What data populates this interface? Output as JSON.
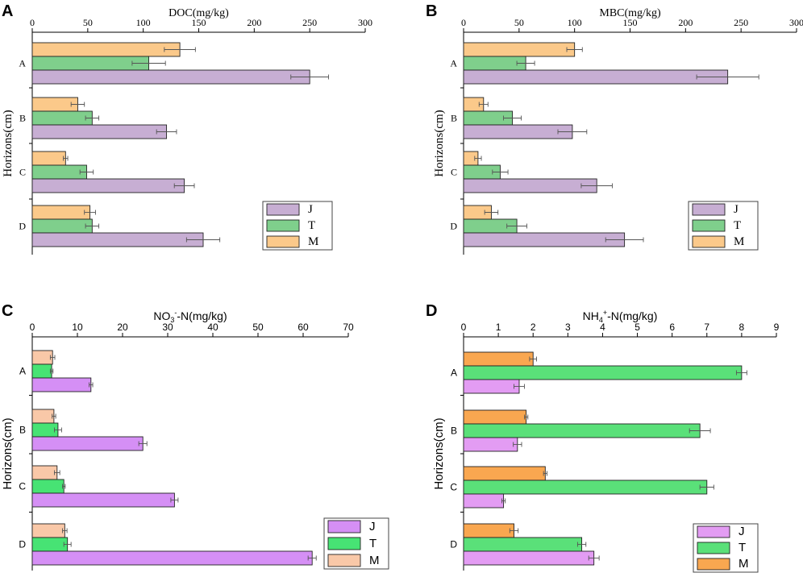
{
  "figure": {
    "panel_labels": [
      "A",
      "B",
      "C",
      "D"
    ]
  },
  "chart_data": [
    {
      "type": "bar",
      "orientation": "horizontal",
      "panel": "A",
      "title": "DOC(mg/kg)",
      "ylabel": "Horizons(cm)",
      "xlabel": "",
      "categories": [
        "A",
        "B",
        "C",
        "D"
      ],
      "xlim": [
        0,
        300
      ],
      "xticks": [
        "0",
        "50",
        "100",
        "150",
        "200",
        "250",
        "300"
      ],
      "legend_position": "bottom-right",
      "legend_order": [
        "J",
        "T",
        "M"
      ],
      "series": [
        {
          "name": "M",
          "color": "#fbc98a",
          "values": [
            133,
            41,
            30,
            52
          ],
          "errors": [
            14,
            6,
            2,
            5
          ]
        },
        {
          "name": "T",
          "color": "#7fcf8c",
          "values": [
            105,
            54,
            49,
            54
          ],
          "errors": [
            15,
            6,
            6,
            6
          ]
        },
        {
          "name": "J",
          "color": "#c7aed3",
          "values": [
            250,
            121,
            137,
            154
          ],
          "errors": [
            17,
            9,
            9,
            15
          ]
        }
      ]
    },
    {
      "type": "bar",
      "orientation": "horizontal",
      "panel": "B",
      "title": "MBC(mg/kg)",
      "ylabel": "Horizons(cm)",
      "xlabel": "",
      "categories": [
        "A",
        "B",
        "C",
        "D"
      ],
      "xlim": [
        0,
        300
      ],
      "xticks": [
        "0",
        "50",
        "100",
        "150",
        "200",
        "250",
        "300"
      ],
      "legend_position": "bottom-right",
      "legend_order": [
        "J",
        "T",
        "M"
      ],
      "series": [
        {
          "name": "M",
          "color": "#fbc98a",
          "values": [
            100,
            18,
            13,
            25
          ],
          "errors": [
            7,
            4,
            3,
            6
          ]
        },
        {
          "name": "T",
          "color": "#7fcf8c",
          "values": [
            56,
            44,
            33,
            48
          ],
          "errors": [
            8,
            8,
            7,
            9
          ]
        },
        {
          "name": "J",
          "color": "#c7aed3",
          "values": [
            238,
            98,
            120,
            145
          ],
          "errors": [
            28,
            13,
            14,
            17
          ]
        }
      ]
    },
    {
      "type": "bar",
      "orientation": "horizontal",
      "panel": "C",
      "title": "NO",
      "title_sub": "3",
      "title_sup": "-",
      "title_tail": "-N(mg/kg)",
      "ylabel": "Horizons(cm)",
      "xlabel": "",
      "categories": [
        "A",
        "B",
        "C",
        "D"
      ],
      "xlim": [
        0,
        70
      ],
      "xticks": [
        "0",
        "10",
        "20",
        "30",
        "40",
        "50",
        "60",
        "70"
      ],
      "legend_position": "bottom-right",
      "legend_order": [
        "J",
        "T",
        "M"
      ],
      "series": [
        {
          "name": "M",
          "color": "#f9c8a8",
          "values": [
            4.5,
            4.8,
            5.5,
            7.2
          ],
          "errors": [
            0.5,
            0.4,
            0.6,
            0.5
          ]
        },
        {
          "name": "T",
          "color": "#47e374",
          "values": [
            4.3,
            5.7,
            7.0,
            7.8
          ],
          "errors": [
            0.3,
            0.8,
            0.3,
            0.8
          ]
        },
        {
          "name": "J",
          "color": "#d58ff5",
          "values": [
            13.0,
            24.5,
            31.5,
            62.0
          ],
          "errors": [
            0.4,
            0.9,
            0.8,
            0.9
          ]
        }
      ]
    },
    {
      "type": "bar",
      "orientation": "horizontal",
      "panel": "D",
      "title": "NH",
      "title_sub": "4",
      "title_sup": "+",
      "title_tail": "-N(mg/kg)",
      "ylabel": "Horizons(cm)",
      "xlabel": "",
      "categories": [
        "A",
        "B",
        "C",
        "D"
      ],
      "xlim": [
        0,
        9
      ],
      "xticks": [
        "0",
        "1",
        "2",
        "3",
        "4",
        "5",
        "6",
        "7",
        "8",
        "9"
      ],
      "legend_position": "bottom-right",
      "legend_order": [
        "J",
        "T",
        "M"
      ],
      "series": [
        {
          "name": "M",
          "color": "#f9a750",
          "values": [
            2.0,
            1.8,
            2.35,
            1.45
          ],
          "errors": [
            0.1,
            0.05,
            0.05,
            0.12
          ]
        },
        {
          "name": "T",
          "color": "#5ae079",
          "values": [
            8.0,
            6.8,
            7.0,
            3.4
          ],
          "errors": [
            0.15,
            0.3,
            0.2,
            0.12
          ]
        },
        {
          "name": "J",
          "color": "#e39cf3",
          "values": [
            1.6,
            1.55,
            1.15,
            3.75
          ],
          "errors": [
            0.15,
            0.12,
            0.05,
            0.15
          ]
        }
      ]
    }
  ]
}
